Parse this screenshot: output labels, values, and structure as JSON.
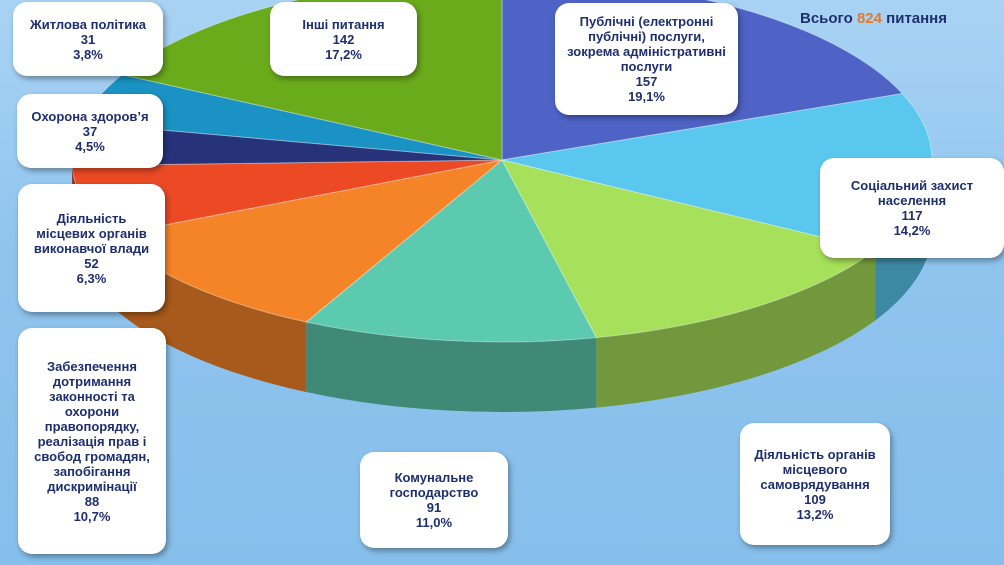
{
  "total": {
    "prefix": "Всього",
    "value": "824",
    "suffix": "питання"
  },
  "chart_data": {
    "type": "pie",
    "total": 824,
    "slices": [
      {
        "label": "Публічні (електронні публічні) послуги, зокрема адміністративні послуги",
        "value": 157,
        "percent": "19,1%",
        "color": "#4f63c7"
      },
      {
        "label": "Соціальний захист населення",
        "value": 117,
        "percent": "14,2%",
        "color": "#5ac8ee"
      },
      {
        "label": "Діяльність органів місцевого самоврядування",
        "value": 109,
        "percent": "13,2%",
        "color": "#a7e05a"
      },
      {
        "label": "Комунальне господарство",
        "value": 91,
        "percent": "11,0%",
        "color": "#5ccaae"
      },
      {
        "label": "Забезпечення дотримання законності та охорони правопорядку, реалізація прав і свобод громадян, запобігання дискримінації",
        "value": 88,
        "percent": "10,7%",
        "color": "#f58428"
      },
      {
        "label": "Діяльність місцевих органів виконавчої влади",
        "value": 52,
        "percent": "6,3%",
        "color": "#ec4a24"
      },
      {
        "label": "Житлова політика",
        "value": 31,
        "percent": "3,8%",
        "color": "#26337a"
      },
      {
        "label": "Охорона здоров’я",
        "value": 37,
        "percent": "4,5%",
        "color": "#1a93c4"
      },
      {
        "label": "Інші питання",
        "value": 142,
        "percent": "17,2%",
        "color": "#6aab1c"
      }
    ]
  }
}
